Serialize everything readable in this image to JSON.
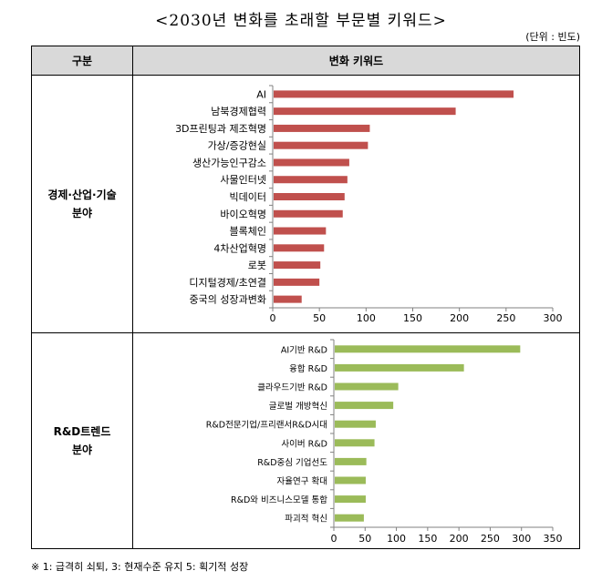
{
  "title": "<2030년 변화를 초래할 부문별 키워드>",
  "unit_note": "(단위 : 빈도)",
  "table": {
    "header_col1": "구분",
    "header_col2": "변화 키워드",
    "rows": [
      {
        "label_line1": "경제·산업·기술",
        "label_line2": "분야"
      },
      {
        "label_line1": "R&D트렌드",
        "label_line2": "분야"
      }
    ]
  },
  "footnote": "※ 1: 급격히 쇠퇴, 3: 현재수준 유지 5: 획기적 성장",
  "colors": {
    "chart1_bar": "#c0504d",
    "chart2_bar": "#9bbb59",
    "axis": "#808080",
    "header_bg": "#d9d9d9"
  },
  "chart_data": [
    {
      "type": "bar",
      "orientation": "horizontal",
      "categories": [
        "AI",
        "남북경제협력",
        "3D프린팅과 제조혁명",
        "가상/증강현실",
        "생산가능인구감소",
        "사물인터넷",
        "빅데이터",
        "바이오혁명",
        "블록체인",
        "4차산업혁명",
        "로봇",
        "디지털경제/초연결",
        "중국의 성장과변화"
      ],
      "values": [
        258,
        196,
        104,
        102,
        82,
        80,
        77,
        75,
        57,
        55,
        51,
        50,
        31
      ],
      "xlim": [
        0,
        300
      ],
      "xticks": [
        0,
        50,
        100,
        150,
        200,
        250,
        300
      ],
      "title": "",
      "xlabel": "",
      "ylabel": "",
      "grid": false
    },
    {
      "type": "bar",
      "orientation": "horizontal",
      "categories": [
        "AI기반 R&D",
        "융합 R&D",
        "클라우드기반 R&D",
        "글로벌 개방혁신",
        "R&D전문기업/프리랜서R&D시대",
        "사이버 R&D",
        "R&D중심 기업선도",
        "자율연구 확대",
        "R&D와 비즈니스모델 통합",
        "파괴적 혁신"
      ],
      "values": [
        298,
        208,
        103,
        95,
        67,
        65,
        52,
        51,
        51,
        48
      ],
      "xlim": [
        0,
        350
      ],
      "xticks": [
        0,
        50,
        100,
        150,
        200,
        250,
        300,
        350
      ],
      "title": "",
      "xlabel": "",
      "ylabel": "",
      "grid": false
    }
  ]
}
